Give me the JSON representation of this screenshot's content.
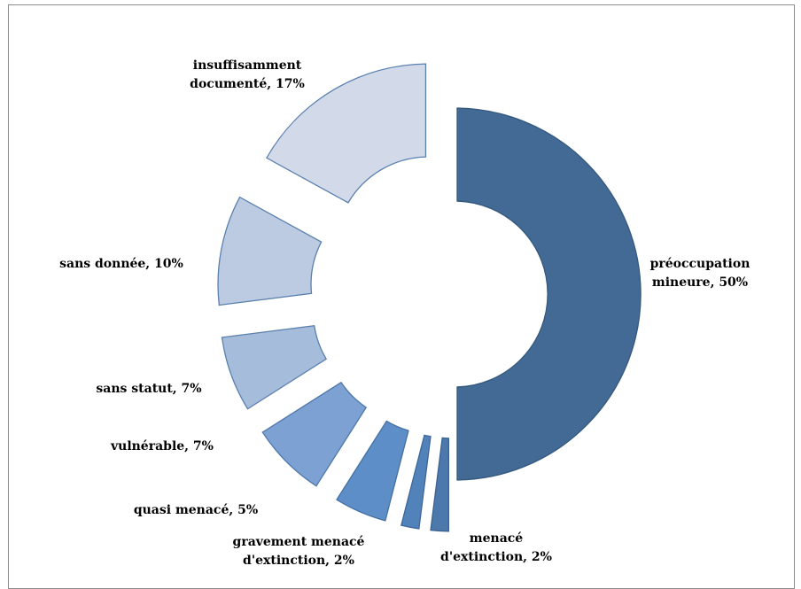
{
  "chart_data": {
    "type": "pie",
    "title": "",
    "legend": "none",
    "slices": [
      {
        "label": "préoccupation mineure, 50%",
        "category": "préoccupation mineure",
        "value": 50,
        "color": "#426a94",
        "stroke": "#35587c"
      },
      {
        "label": "menacé d'extinction, 2%",
        "category": "menacé d'extinction",
        "value": 2,
        "color": "#4c78ab",
        "stroke": "#3b6290"
      },
      {
        "label": "gravement menacé d'extinction, 2%",
        "category": "gravement menacé d'extinction",
        "value": 2,
        "color": "#5282ba",
        "stroke": "#3d6696"
      },
      {
        "label": "quasi menacé, 5%",
        "category": "quasi menacé",
        "value": 5,
        "color": "#5d8ec7",
        "stroke": "#4470a2"
      },
      {
        "label": "vulnérable, 7%",
        "category": "vulnérable",
        "value": 7,
        "color": "#7ca1d2",
        "stroke": "#4f78aa"
      },
      {
        "label": "sans statut, 7%",
        "category": "sans statut",
        "value": 7,
        "color": "#a5bcdb",
        "stroke": "#5a80ae"
      },
      {
        "label": "sans donnée, 10%",
        "category": "sans donnée",
        "value": 10,
        "color": "#bccbe2",
        "stroke": "#5a80ae"
      },
      {
        "label": "insuffisamment documenté, 17%",
        "category": "insuffisamment documenté",
        "value": 17,
        "color": "#d2dae9",
        "stroke": "#5a80ae"
      }
    ]
  }
}
